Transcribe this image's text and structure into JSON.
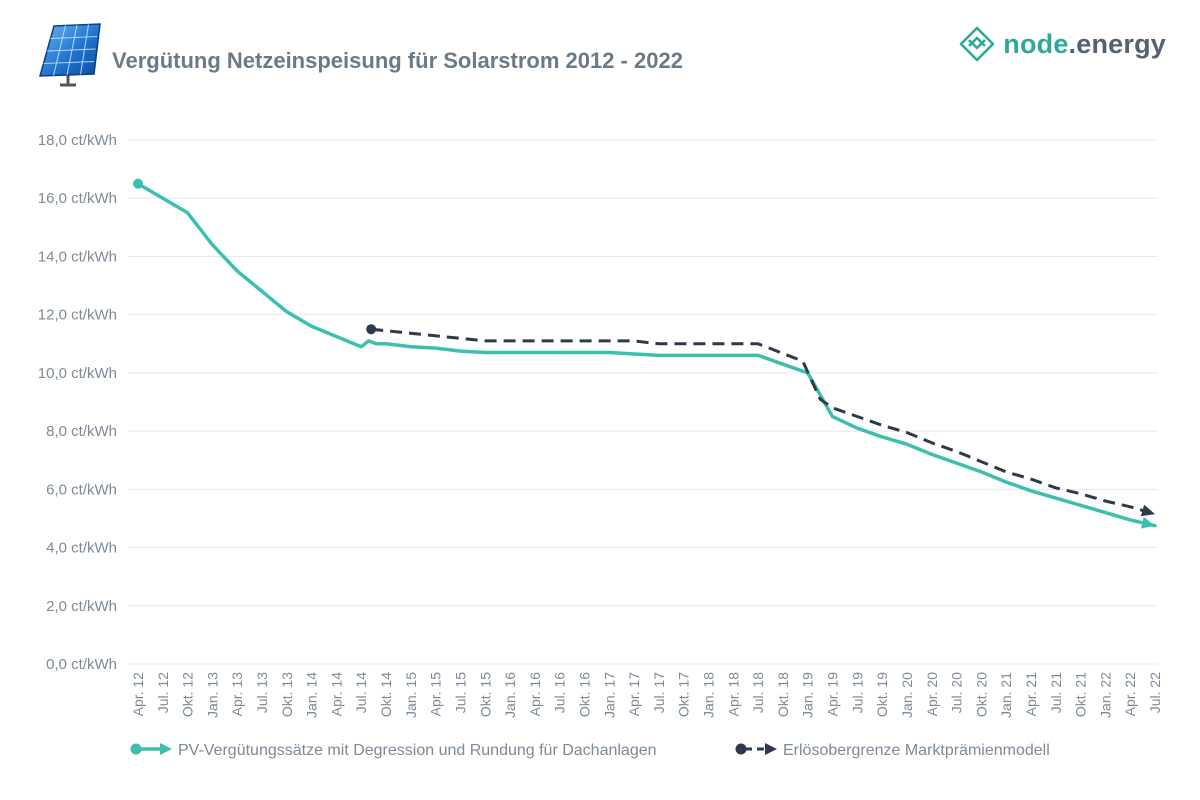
{
  "header": {
    "title": "Vergütung Netzeinspeisung für Solarstrom 2012 - 2022",
    "icon": "solar-panel-icon",
    "brand": {
      "part1": "node",
      "part2": ".energy",
      "icon": "node-energy-logo-icon"
    }
  },
  "colors": {
    "series_pv": "#3dbfb0",
    "series_markt": "#2e3a4c",
    "grid": "#e6e8eb",
    "text": "#7d8a97"
  },
  "chart_data": {
    "type": "line",
    "title": "Vergütung Netzeinspeisung für Solarstrom 2012 - 2022",
    "xlabel": "",
    "ylabel": "",
    "ylim": [
      0,
      18
    ],
    "yticks": [
      0,
      2,
      4,
      6,
      8,
      10,
      12,
      14,
      16,
      18
    ],
    "ytick_labels": [
      "0,0 ct/kWh",
      "2,0 ct/kWh",
      "4,0 ct/kWh",
      "6,0 ct/kWh",
      "8,0 ct/kWh",
      "10,0 ct/kWh",
      "12,0 ct/kWh",
      "14,0 ct/kWh",
      "16,0 ct/kWh",
      "18,0 ct/kWh"
    ],
    "grid": true,
    "legend_position": "bottom",
    "categories": [
      "Apr. 12",
      "Jul. 12",
      "Okt. 12",
      "Jan. 13",
      "Apr. 13",
      "Jul. 13",
      "Okt. 13",
      "Jan. 14",
      "Apr. 14",
      "Jul. 14",
      "Okt. 14",
      "Jan. 15",
      "Apr. 15",
      "Jul. 15",
      "Okt. 15",
      "Jan. 16",
      "Apr. 16",
      "Jul. 16",
      "Okt. 16",
      "Jan. 17",
      "Apr. 17",
      "Jul. 17",
      "Okt. 17",
      "Jan. 18",
      "Apr. 18",
      "Jul. 18",
      "Okt. 18",
      "Jan. 19",
      "Apr. 19",
      "Jul. 19",
      "Okt. 19",
      "Jan. 20",
      "Apr. 20",
      "Jul. 20",
      "Okt. 20",
      "Jan. 21",
      "Apr. 21",
      "Jul. 21",
      "Okt. 21",
      "Jan. 22",
      "Apr. 22",
      "Jul. 22"
    ],
    "series": [
      {
        "name": "PV-Vergütungssätze mit Degression und Rundung für Dachanlagen",
        "color": "#3dbfb0",
        "style": "solid",
        "points": [
          [
            0,
            16.5
          ],
          [
            2,
            15.5
          ],
          [
            3,
            14.4
          ],
          [
            4,
            13.5
          ],
          [
            5,
            12.8
          ],
          [
            6,
            12.1
          ],
          [
            7,
            11.6
          ],
          [
            8,
            11.25
          ],
          [
            9,
            10.9
          ],
          [
            9.3,
            11.1
          ],
          [
            9.6,
            11.0
          ],
          [
            10,
            11.0
          ],
          [
            11,
            10.9
          ],
          [
            12,
            10.85
          ],
          [
            13,
            10.75
          ],
          [
            14,
            10.7
          ],
          [
            15,
            10.7
          ],
          [
            16,
            10.7
          ],
          [
            17,
            10.7
          ],
          [
            18,
            10.7
          ],
          [
            19,
            10.7
          ],
          [
            20,
            10.65
          ],
          [
            21,
            10.6
          ],
          [
            22,
            10.6
          ],
          [
            23,
            10.6
          ],
          [
            24,
            10.6
          ],
          [
            25,
            10.6
          ],
          [
            26,
            10.3
          ],
          [
            27,
            10.0
          ],
          [
            28,
            8.5
          ],
          [
            29,
            8.1
          ],
          [
            30,
            7.8
          ],
          [
            31,
            7.55
          ],
          [
            32,
            7.2
          ],
          [
            33,
            6.9
          ],
          [
            34,
            6.6
          ],
          [
            35,
            6.25
          ],
          [
            36,
            5.95
          ],
          [
            37,
            5.7
          ],
          [
            38,
            5.45
          ],
          [
            39,
            5.2
          ],
          [
            40,
            4.95
          ],
          [
            41,
            4.75
          ]
        ]
      },
      {
        "name": "Erlösobergrenze Marktprämienmodell",
        "color": "#2e3a4c",
        "style": "dashed",
        "points": [
          [
            9.4,
            11.5
          ],
          [
            14,
            11.1
          ],
          [
            20,
            11.1
          ],
          [
            21,
            11.0
          ],
          [
            25,
            11.0
          ],
          [
            26.8,
            10.4
          ],
          [
            27.5,
            9.1
          ],
          [
            28,
            8.8
          ],
          [
            30,
            8.2
          ],
          [
            31,
            7.95
          ],
          [
            32,
            7.6
          ],
          [
            33,
            7.3
          ],
          [
            34,
            6.95
          ],
          [
            35,
            6.6
          ],
          [
            36,
            6.35
          ],
          [
            37,
            6.05
          ],
          [
            38,
            5.85
          ],
          [
            39,
            5.6
          ],
          [
            40,
            5.4
          ],
          [
            41,
            5.15
          ]
        ]
      }
    ]
  }
}
